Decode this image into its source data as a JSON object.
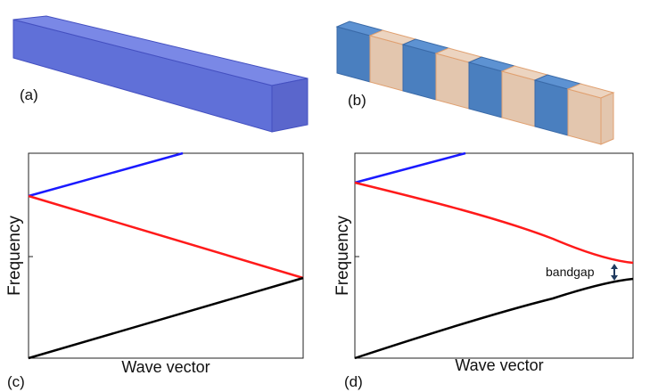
{
  "panels": {
    "a": {
      "label": "(a)"
    },
    "b": {
      "label": "(b)"
    },
    "c": {
      "label": "(c)",
      "y_label": "Frequency",
      "x_label": "Wave vector"
    },
    "d": {
      "label": "(d)",
      "y_label": "Frequency",
      "x_label": "Wave vector",
      "annotation": "bandgap"
    }
  }
}
